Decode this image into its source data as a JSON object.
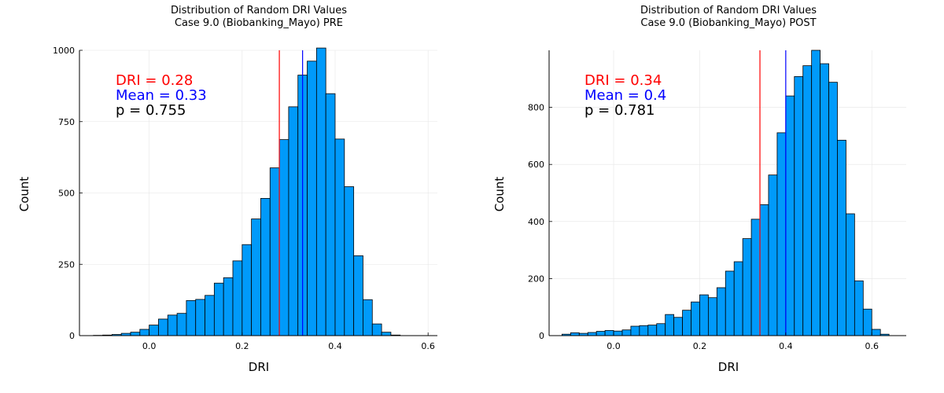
{
  "chart_data": [
    {
      "type": "bar",
      "title": "Distribution of Random DRI Values",
      "subtitle": "Case 9.0 (Biobanking_Mayo) PRE",
      "xlabel": "DRI",
      "ylabel": "Count",
      "xlim": [
        -0.15,
        0.62
      ],
      "ylim": [
        0,
        1000
      ],
      "xticks": [
        0.0,
        0.2,
        0.4,
        0.6
      ],
      "xtick_labels": [
        "0.0",
        "0.2",
        "0.4",
        "0.6"
      ],
      "yticks": [
        0,
        250,
        500,
        750,
        1000
      ],
      "ytick_labels": [
        "0",
        "250",
        "500",
        "750",
        "1000"
      ],
      "grid": true,
      "bin_width": 0.02,
      "bins_start": -0.12,
      "values": [
        1,
        2,
        4,
        8,
        12,
        22,
        37,
        58,
        72,
        78,
        123,
        127,
        141,
        184,
        203,
        262,
        319,
        409,
        481,
        588,
        687,
        802,
        913,
        962,
        1008,
        848,
        689,
        522,
        280,
        126,
        41,
        12,
        2
      ],
      "bar_color": "#009AFA",
      "vlines": [
        {
          "x": 0.28,
          "color": "#ff0000"
        },
        {
          "x": 0.33,
          "color": "#0000ff"
        }
      ],
      "annotations": [
        {
          "text": "DRI = 0.28",
          "color": "#ff0000"
        },
        {
          "text": "Mean = 0.33",
          "color": "#0000ff"
        },
        {
          "text": "p = 0.755",
          "color": "#000000"
        }
      ]
    },
    {
      "type": "bar",
      "title": "Distribution of Random DRI Values",
      "subtitle": "Case 9.0 (Biobanking_Mayo) POST",
      "xlabel": "DRI",
      "ylabel": "Count",
      "xlim": [
        -0.15,
        0.68
      ],
      "ylim": [
        0,
        1000
      ],
      "xticks": [
        0.0,
        0.2,
        0.4,
        0.6
      ],
      "xtick_labels": [
        "0.0",
        "0.2",
        "0.4",
        "0.6"
      ],
      "yticks": [
        0,
        200,
        400,
        600,
        800
      ],
      "ytick_labels": [
        "0",
        "200",
        "400",
        "600",
        "800"
      ],
      "grid": true,
      "bin_width": 0.02,
      "bins_start": -0.12,
      "values": [
        5,
        10,
        8,
        11,
        15,
        18,
        16,
        20,
        33,
        35,
        37,
        42,
        74,
        64,
        89,
        118,
        143,
        133,
        168,
        226,
        259,
        340,
        408,
        459,
        563,
        711,
        840,
        908,
        946,
        1000,
        953,
        888,
        685,
        427,
        192,
        93,
        22,
        5
      ],
      "bar_color": "#009AFA",
      "vlines": [
        {
          "x": 0.34,
          "color": "#ff0000"
        },
        {
          "x": 0.4,
          "color": "#0000ff"
        }
      ],
      "annotations": [
        {
          "text": "DRI = 0.34",
          "color": "#ff0000"
        },
        {
          "text": "Mean = 0.4",
          "color": "#0000ff"
        },
        {
          "text": "p = 0.781",
          "color": "#000000"
        }
      ]
    }
  ]
}
